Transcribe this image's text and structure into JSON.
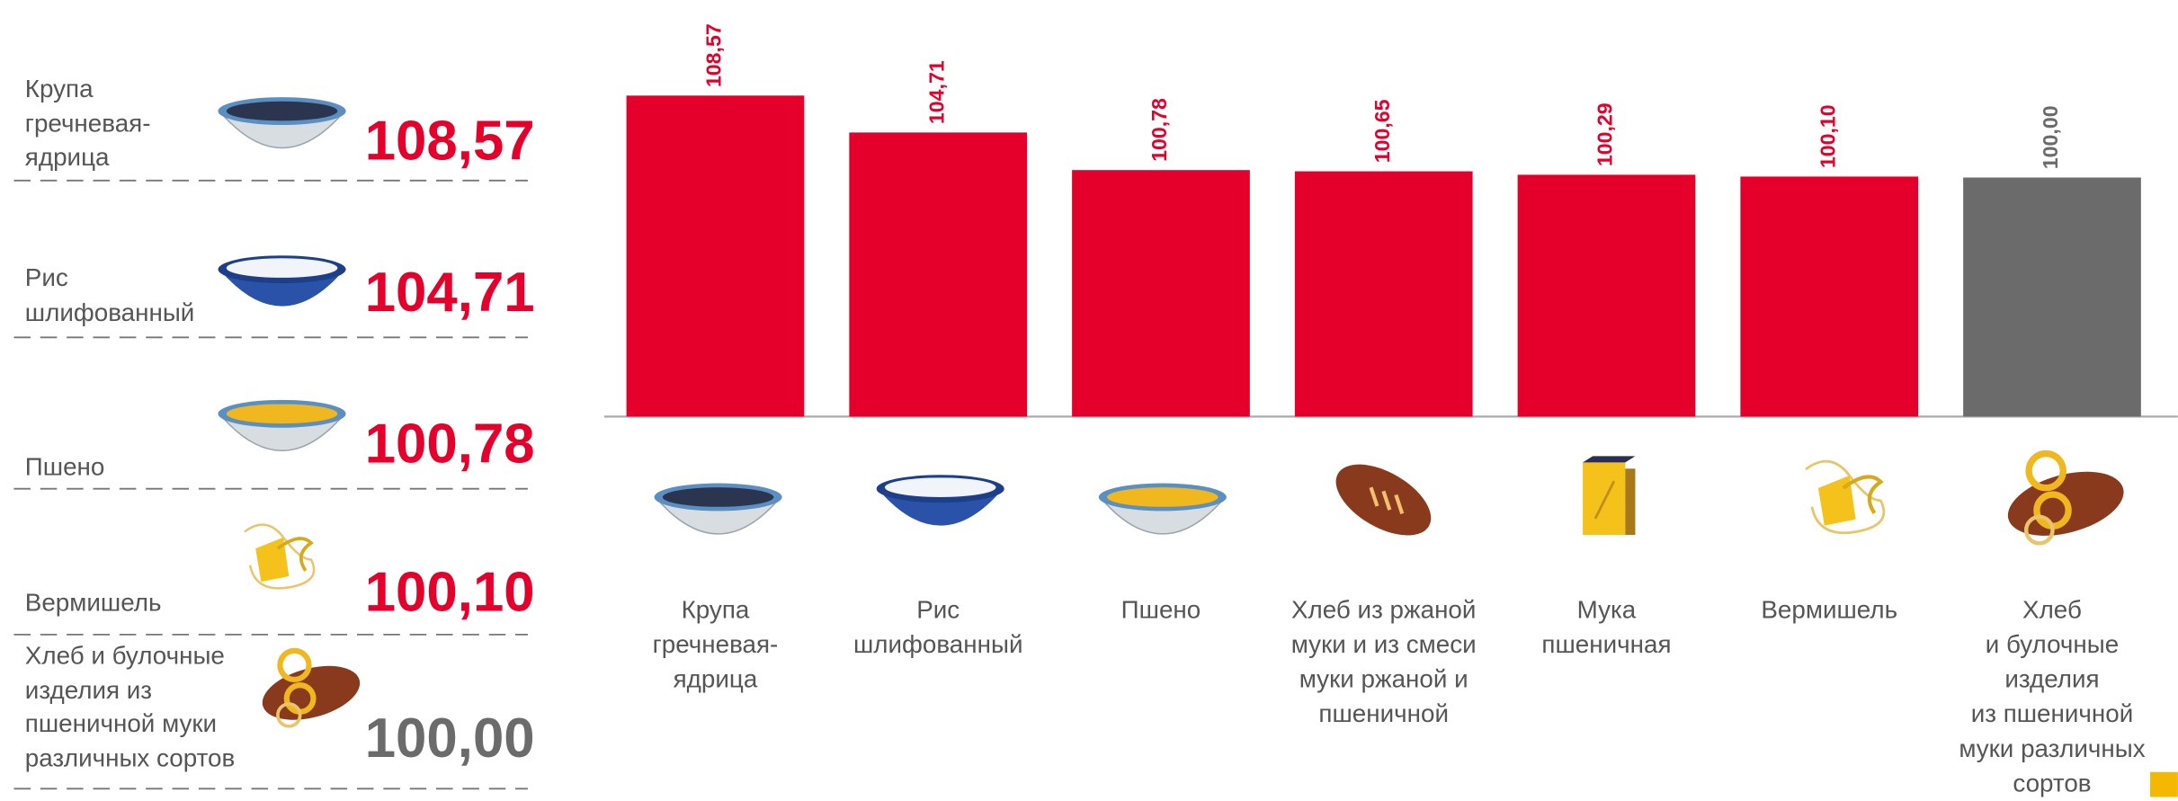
{
  "chart_data": {
    "type": "bar",
    "categories": [
      "Крупа\nгречневая-\nядрица",
      "Рис\nшлифованный",
      "Пшено",
      "Хлеб из ржаной\nмуки и из смеси\nмуки ржаной и\nпшеничной",
      "Мука\nпшеничная",
      "Вермишель",
      "Хлеб\nи булочные\nизделия\nиз пшеничной\nмуки различных\nсортов"
    ],
    "values": [
      108.57,
      104.71,
      100.78,
      100.65,
      100.29,
      100.1,
      100.0
    ],
    "value_labels": [
      "108,57",
      "104,71",
      "100,78",
      "100,65",
      "100,29",
      "100,10",
      "100,00"
    ],
    "colors": [
      "#e4002b",
      "#e4002b",
      "#e4002b",
      "#e4002b",
      "#e4002b",
      "#e4002b",
      "#6b6b6b"
    ],
    "ylim": [
      75,
      110
    ]
  },
  "list": {
    "items": [
      {
        "label": "Крупа\nгречневая-\nядрица",
        "value": "108,57",
        "color": "#e4002b"
      },
      {
        "label": "Рис\nшлифованный",
        "value": "104,71",
        "color": "#e4002b"
      },
      {
        "label": "Пшено",
        "value": "100,78",
        "color": "#e4002b"
      },
      {
        "label": "Вермишель",
        "value": "100,10",
        "color": "#e4002b"
      },
      {
        "label": "Хлеб и булочные\nизделия из\nпшеничной муки\nразличных сортов",
        "value": "100,00",
        "color": "#6b6b6b"
      }
    ]
  }
}
